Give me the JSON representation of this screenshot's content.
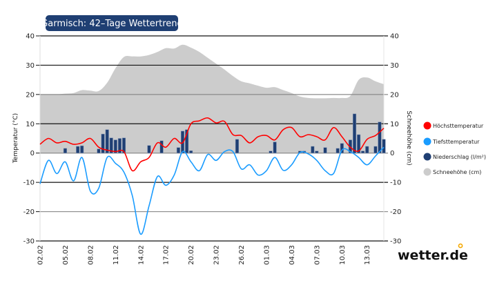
{
  "chart_data": {
    "type": "line",
    "title": "Garmisch: 42–Tage Wettertrend",
    "ylabel_left": "Temperatur (°C)",
    "ylabel_right": "Schneehöhe (cm)",
    "ylim": [
      -30,
      40
    ],
    "yticks": [
      "40",
      "30",
      "20",
      "10",
      "0",
      "-10",
      "-20",
      "-30"
    ],
    "grid": true,
    "legend_position": "right",
    "dates": [
      "02.02",
      "03.02",
      "04.02",
      "05.02",
      "06.02",
      "07.02",
      "08.02",
      "09.02",
      "10.02",
      "11.02",
      "12.02",
      "13.02",
      "14.02",
      "15.02",
      "16.02",
      "17.02",
      "18.02",
      "19.02",
      "20.02",
      "21.02",
      "22.02",
      "23.02",
      "24.02",
      "25.02",
      "26.02",
      "27.02",
      "28.02",
      "01.03",
      "02.03",
      "03.03",
      "04.03",
      "05.03",
      "06.03",
      "07.03",
      "08.03",
      "09.03",
      "10.03",
      "11.03",
      "12.03",
      "13.03",
      "14.03",
      "15.03"
    ],
    "xtick_labels": [
      "02.02",
      "05.02",
      "08.02",
      "11.02",
      "14.02",
      "17.02",
      "20.02",
      "23.02",
      "26.02",
      "01.03",
      "04.03",
      "07.03",
      "10.03",
      "13.03"
    ],
    "series": [
      {
        "name": "Höchsttemperatur",
        "type": "line",
        "color": "#ff0000",
        "values": [
          3,
          5,
          3.5,
          4,
          3,
          3.5,
          5,
          2,
          1,
          0.5,
          0.5,
          -6,
          -3,
          -1.5,
          3.5,
          2,
          5,
          3.5,
          10,
          11,
          12,
          10.3,
          10.8,
          6.3,
          6,
          3.5,
          5.6,
          6,
          4.5,
          8,
          8.7,
          5.6,
          6.3,
          5.6,
          4.5,
          8.7,
          5.6,
          2,
          0.7,
          4.7,
          6,
          8.5
        ]
      },
      {
        "name": "Tiefsttemperatur",
        "type": "line",
        "color": "#1a9cff",
        "values": [
          -10.5,
          -2.5,
          -7,
          -3,
          -9.5,
          -1.5,
          -13,
          -12,
          -1.5,
          -3.5,
          -6.5,
          -14.5,
          -27.7,
          -18,
          -8,
          -11,
          -7.5,
          0.5,
          -3,
          -6,
          -0.5,
          -2.5,
          0.5,
          0.5,
          -5.4,
          -4,
          -7.5,
          -6,
          -1.5,
          -5.9,
          -4,
          0.2,
          -0.3,
          -2.5,
          -6,
          -7,
          1,
          0.5,
          -1.5,
          -4,
          -1,
          2
        ]
      },
      {
        "name": "Niederschlag (l/m²)",
        "type": "bar",
        "color": "#1f3f73",
        "values_half_day": [
          [
            0,
            0
          ],
          [
            0,
            0
          ],
          [
            0,
            0
          ],
          [
            1.6,
            0
          ],
          [
            0,
            2.3
          ],
          [
            2.5,
            0
          ],
          [
            0,
            0
          ],
          [
            1.4,
            6.5
          ],
          [
            8,
            5.2
          ],
          [
            4.5,
            5
          ],
          [
            5.2,
            0
          ],
          [
            0,
            0
          ],
          [
            0,
            0
          ],
          [
            2.6,
            0
          ],
          [
            0,
            4.2
          ],
          [
            0,
            0
          ],
          [
            0,
            1.9
          ],
          [
            7.5,
            8
          ],
          [
            0.8,
            0
          ],
          [
            0,
            0
          ],
          [
            0,
            0
          ],
          [
            0,
            0
          ],
          [
            0,
            0
          ],
          [
            0,
            4.7
          ],
          [
            0,
            0
          ],
          [
            0,
            0
          ],
          [
            0,
            0
          ],
          [
            0,
            0.7
          ],
          [
            3.8,
            0
          ],
          [
            0,
            0
          ],
          [
            0,
            0
          ],
          [
            0.7,
            0.7
          ],
          [
            0,
            2.3
          ],
          [
            0.7,
            0
          ],
          [
            1.9,
            0
          ],
          [
            0,
            1.6
          ],
          [
            3.3,
            0
          ],
          [
            4.5,
            13.4
          ],
          [
            6.3,
            0.7
          ],
          [
            2.3,
            0
          ],
          [
            2.3,
            10.6
          ],
          [
            4.7,
            0
          ]
        ]
      },
      {
        "name": "Schneehöhe (cm)",
        "type": "area",
        "color": "#cccccc",
        "values": [
          20,
          20,
          20,
          20.3,
          20.5,
          21.5,
          21.3,
          21.2,
          24,
          29,
          32.8,
          33,
          33,
          33.5,
          34.5,
          35.8,
          35.7,
          37,
          36,
          34.5,
          32.5,
          30.5,
          28.5,
          26.3,
          24.5,
          23.8,
          23,
          22.3,
          22.5,
          21.5,
          20.5,
          19.3,
          18.8,
          18.7,
          18.7,
          18.8,
          18.8,
          19.5,
          25,
          25.8,
          24.5,
          23.5
        ]
      }
    ]
  },
  "legend": [
    {
      "label": "Höchsttemperatur",
      "color": "#ff0000"
    },
    {
      "label": "Tiefsttemperatur",
      "color": "#1a9cff"
    },
    {
      "label": "Niederschlag (l/m²)",
      "color": "#1f3f73"
    },
    {
      "label": "Schneehöhe (cm)",
      "color": "#cccccc"
    }
  ],
  "brand": {
    "logo_text": "wetter.de",
    "accent": "#f5a800",
    "title_bg": "#1f3f73"
  }
}
